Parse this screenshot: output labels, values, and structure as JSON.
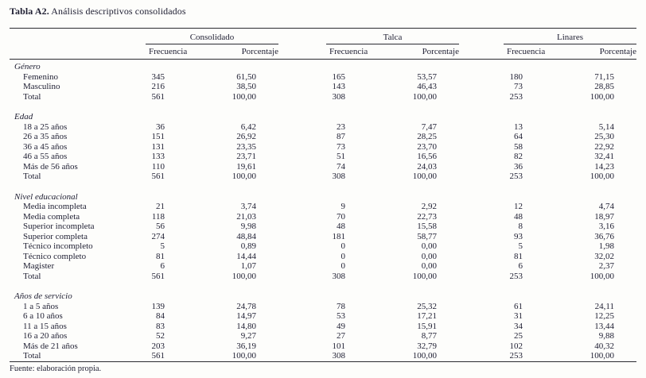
{
  "title": {
    "prefix": "Tabla A2.",
    "caption": " Análisis descriptivos consolidados"
  },
  "table": {
    "groups": [
      {
        "label": "Consolidado"
      },
      {
        "label": "Talca"
      },
      {
        "label": "Linares"
      }
    ],
    "subheaders": {
      "frequency": "Frecuencia",
      "percentage": "Porcentaje"
    },
    "sections": [
      {
        "label": "Género",
        "rows": [
          {
            "label": "Femenino",
            "values": [
              "345",
              "61,50",
              "165",
              "53,57",
              "180",
              "71,15"
            ]
          },
          {
            "label": "Masculino",
            "values": [
              "216",
              "38,50",
              "143",
              "46,43",
              "73",
              "28,85"
            ]
          },
          {
            "label": "Total",
            "values": [
              "561",
              "100,00",
              "308",
              "100,00",
              "253",
              "100,00"
            ]
          }
        ]
      },
      {
        "label": "Edad",
        "rows": [
          {
            "label": "18 a 25 años",
            "values": [
              "36",
              "6,42",
              "23",
              "7,47",
              "13",
              "5,14"
            ]
          },
          {
            "label": "26 a 35 años",
            "values": [
              "151",
              "26,92",
              "87",
              "28,25",
              "64",
              "25,30"
            ]
          },
          {
            "label": "36 a 45 años",
            "values": [
              "131",
              "23,35",
              "73",
              "23,70",
              "58",
              "22,92"
            ]
          },
          {
            "label": "46 a 55 años",
            "values": [
              "133",
              "23,71",
              "51",
              "16,56",
              "82",
              "32,41"
            ]
          },
          {
            "label": "Más de 56 años",
            "values": [
              "110",
              "19,61",
              "74",
              "24,03",
              "36",
              "14,23"
            ]
          },
          {
            "label": "Total",
            "values": [
              "561",
              "100,00",
              "308",
              "100,00",
              "253",
              "100,00"
            ]
          }
        ]
      },
      {
        "label": "Nivel educacional",
        "rows": [
          {
            "label": "Media incompleta",
            "values": [
              "21",
              "3,74",
              "9",
              "2,92",
              "12",
              "4,74"
            ]
          },
          {
            "label": "Media completa",
            "values": [
              "118",
              "21,03",
              "70",
              "22,73",
              "48",
              "18,97"
            ]
          },
          {
            "label": "Superior incompleta",
            "values": [
              "56",
              "9,98",
              "48",
              "15,58",
              "8",
              "3,16"
            ]
          },
          {
            "label": "Superior completa",
            "values": [
              "274",
              "48,84",
              "181",
              "58,77",
              "93",
              "36,76"
            ]
          },
          {
            "label": "Técnico incompleto",
            "values": [
              "5",
              "0,89",
              "0",
              "0,00",
              "5",
              "1,98"
            ]
          },
          {
            "label": "Técnico completo",
            "values": [
              "81",
              "14,44",
              "0",
              "0,00",
              "81",
              "32,02"
            ]
          },
          {
            "label": "Magister",
            "values": [
              "6",
              "1,07",
              "0",
              "0,00",
              "6",
              "2,37"
            ]
          },
          {
            "label": "Total",
            "values": [
              "561",
              "100,00",
              "308",
              "100,00",
              "253",
              "100,00"
            ]
          }
        ]
      },
      {
        "label": "Años de servicio",
        "rows": [
          {
            "label": "1 a 5 años",
            "values": [
              "139",
              "24,78",
              "78",
              "25,32",
              "61",
              "24,11"
            ]
          },
          {
            "label": "6 a 10 años",
            "values": [
              "84",
              "14,97",
              "53",
              "17,21",
              "31",
              "12,25"
            ]
          },
          {
            "label": "11 a 15 años",
            "values": [
              "83",
              "14,80",
              "49",
              "15,91",
              "34",
              "13,44"
            ]
          },
          {
            "label": "16 a 20 años",
            "values": [
              "52",
              "9,27",
              "27",
              "8,77",
              "25",
              "9,88"
            ]
          },
          {
            "label": "Más de 21 años",
            "values": [
              "203",
              "36,19",
              "101",
              "32,79",
              "102",
              "40,32"
            ]
          },
          {
            "label": "Total",
            "values": [
              "561",
              "100,00",
              "308",
              "100,00",
              "253",
              "100,00"
            ]
          }
        ]
      }
    ]
  },
  "footer": {
    "source": "Fuente: elaboración propia."
  },
  "colors": {
    "text": "#1e1e32",
    "rule": "#2a2a30",
    "background": "#fdfdfb"
  }
}
